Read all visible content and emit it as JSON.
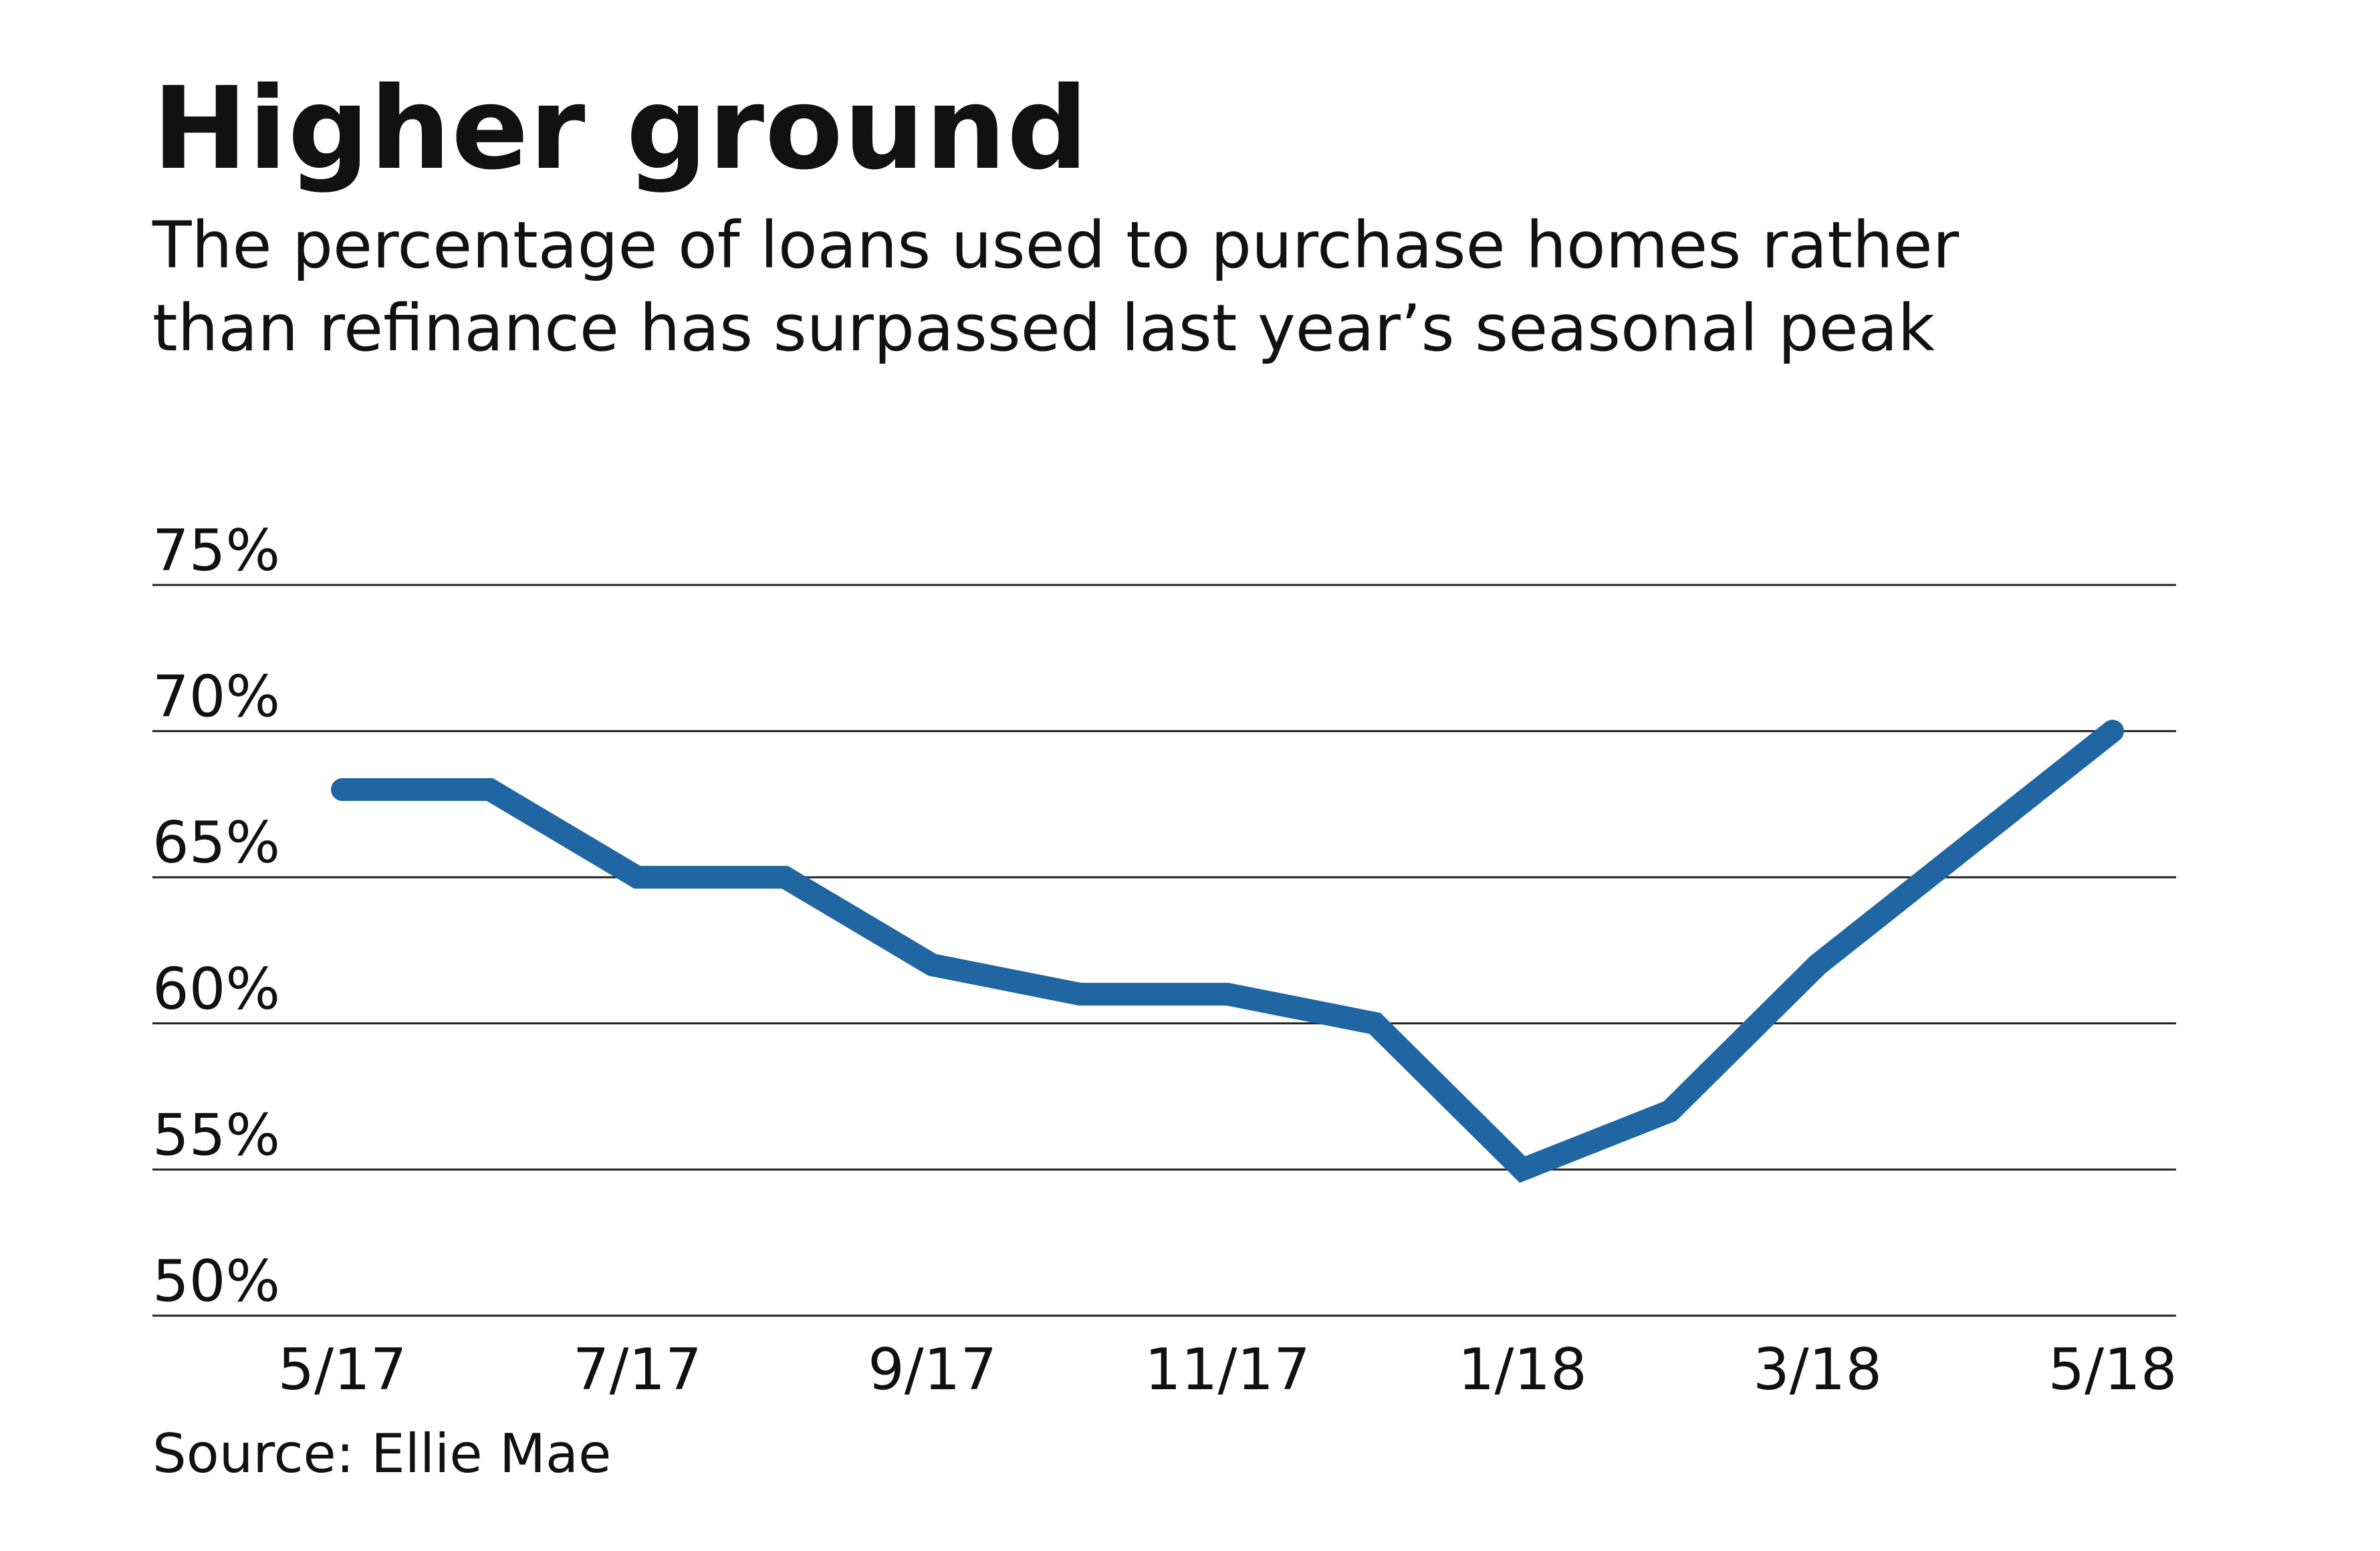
{
  "title": "Higher ground",
  "subtitle_lines": [
    "The percentage of loans used to purchase homes rather",
    "than refinance has surpassed last year’s seasonal peak"
  ],
  "source": "Source: Ellie Mae",
  "colors": {
    "line": "#1f66a3",
    "grid": "#222222",
    "text": "#111111"
  },
  "chart_data": {
    "type": "line",
    "title": "Higher ground",
    "subtitle": "The percentage of loans used to purchase homes rather than refinance has surpassed last year’s seasonal peak",
    "xlabel": "",
    "ylabel": "",
    "x": [
      "5/17",
      "6/17",
      "7/17",
      "8/17",
      "9/17",
      "10/17",
      "11/17",
      "12/17",
      "1/18",
      "2/18",
      "3/18",
      "4/18",
      "5/18"
    ],
    "x_tick_labels": [
      "5/17",
      "7/17",
      "9/17",
      "11/17",
      "1/18",
      "3/18",
      "5/18"
    ],
    "y_tick_labels": [
      "75%",
      "70%",
      "65%",
      "60%",
      "55%",
      "50%"
    ],
    "ylim": [
      50,
      75
    ],
    "y_ticks": [
      50,
      55,
      60,
      65,
      70,
      75
    ],
    "grid": true,
    "legend": "none",
    "series": [
      {
        "values": [
          68,
          68,
          65,
          65,
          62,
          61,
          61,
          60,
          55,
          57,
          62,
          66,
          70
        ]
      }
    ]
  }
}
